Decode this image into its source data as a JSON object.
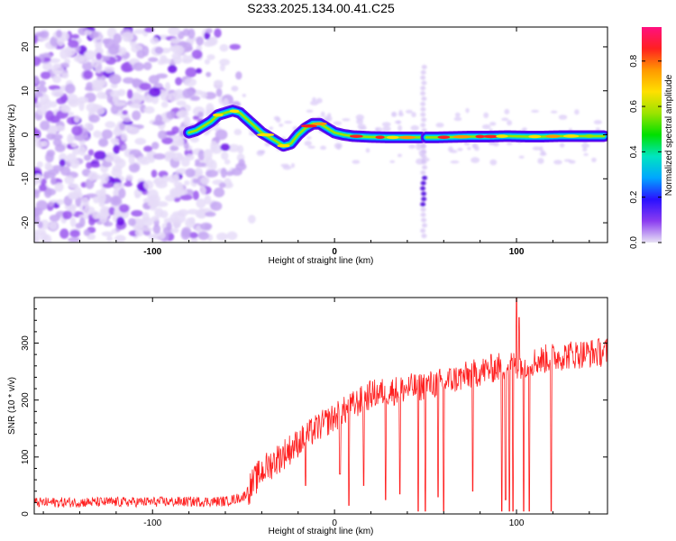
{
  "title": "S233.2025.134.00.41.C25",
  "chart_data": [
    {
      "type": "heatmap",
      "xlabel": "Height of straight line (km)",
      "ylabel": "Frequency (Hz)",
      "xlim": [
        -165,
        150
      ],
      "ylim": [
        -24.5,
        24.5
      ],
      "xticks": [
        -100,
        0,
        100
      ],
      "yticks": [
        -20,
        -10,
        0,
        10,
        20
      ],
      "colorbar": {
        "label": "Normalized spectral amplitude",
        "range": [
          0,
          0.95
        ],
        "ticks": [
          0,
          0.2,
          0.4,
          0.6,
          0.8
        ],
        "colors": [
          "#e8e2f5",
          "#8a3cf0",
          "#2a10ff",
          "#00a6ff",
          "#00e5c0",
          "#00e000",
          "#9be300",
          "#ffe000",
          "#ff9900",
          "#ff2020",
          "#ff1080"
        ]
      },
      "ridge": {
        "x": [
          -80,
          -76,
          -72,
          -68,
          -64,
          -60,
          -56,
          -52,
          -48,
          -44,
          -40,
          -36,
          -32,
          -28,
          -24,
          -20,
          -16,
          -12,
          -8,
          -4,
          0,
          5,
          10,
          20,
          30,
          40,
          47,
          55,
          65,
          75,
          85,
          95,
          105,
          115,
          125,
          135,
          148
        ],
        "y": [
          0.5,
          1,
          2,
          3,
          4.5,
          5,
          5.5,
          5,
          3.5,
          2,
          0.5,
          -0.5,
          -1.5,
          -2.5,
          -2,
          0,
          1.5,
          2.5,
          2.5,
          1.5,
          0.5,
          0,
          -0.3,
          -0.5,
          -0.6,
          -0.6,
          -0.6,
          -0.6,
          -0.5,
          -0.4,
          -0.4,
          -0.3,
          -0.4,
          -0.4,
          -0.3,
          -0.3,
          -0.3
        ]
      },
      "gap": {
        "x": 49,
        "y_range": [
          -23,
          16
        ]
      },
      "noise_region": {
        "x_range": [
          -165,
          -55
        ],
        "y_range": [
          -24,
          24
        ]
      }
    },
    {
      "type": "line",
      "xlabel": "Height of straight line (km)",
      "ylabel": "SNR (10 * v/v)",
      "xlim": [
        -165,
        150
      ],
      "ylim": [
        0,
        380
      ],
      "xticks": [
        -100,
        0,
        100
      ],
      "yticks": [
        0,
        100,
        200,
        300
      ],
      "series": [
        {
          "color": "#ff2020",
          "trend": {
            "x": [
              -165,
              -60,
              -50,
              -40,
              -30,
              -20,
              -10,
              0,
              10,
              20,
              30,
              40,
              50,
              60,
              70,
              80,
              90,
              100,
              110,
              120,
              130,
              140,
              150
            ],
            "y": [
              20,
              22,
              30,
              75,
              100,
              125,
              150,
              170,
              190,
              210,
              215,
              220,
              225,
              232,
              240,
              250,
              258,
              262,
              268,
              275,
              280,
              282,
              285
            ]
          },
          "dips": [
            {
              "x": -16,
              "y": 50
            },
            {
              "x": 3,
              "y": 70
            },
            {
              "x": 8,
              "y": 15
            },
            {
              "x": 16,
              "y": 50
            },
            {
              "x": 28,
              "y": 25
            },
            {
              "x": 36,
              "y": 35
            },
            {
              "x": 46,
              "y": 5
            },
            {
              "x": 50,
              "y": 5
            },
            {
              "x": 57,
              "y": 30
            },
            {
              "x": 60,
              "y": 5
            },
            {
              "x": 76,
              "y": 40
            },
            {
              "x": 92,
              "y": 5
            },
            {
              "x": 94,
              "y": 25
            },
            {
              "x": 96,
              "y": 5
            },
            {
              "x": 98,
              "y": 5
            },
            {
              "x": 100,
              "y": 5
            },
            {
              "x": 104,
              "y": 5
            },
            {
              "x": 107,
              "y": 5
            },
            {
              "x": 119,
              "y": 5
            }
          ],
          "peaks": [
            {
              "x": 100,
              "y": 380
            },
            {
              "x": 101.5,
              "y": 345
            }
          ]
        }
      ]
    }
  ]
}
